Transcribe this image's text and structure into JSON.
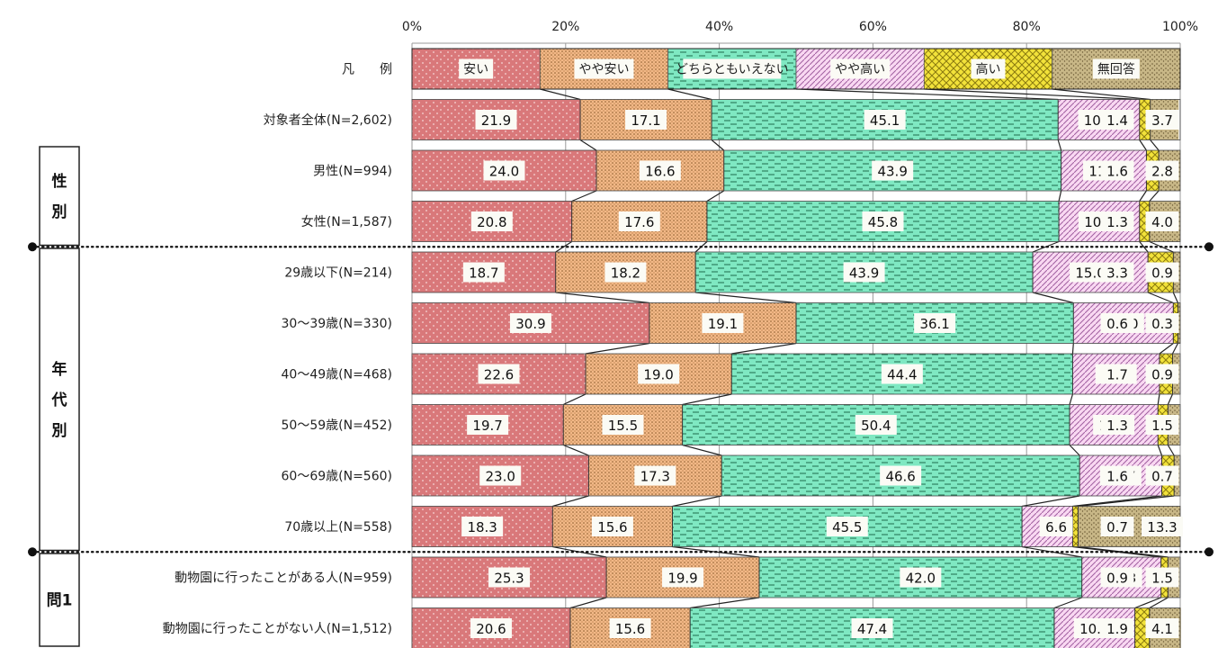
{
  "chart_data": {
    "type": "bar",
    "orientation": "horizontal",
    "stacked": true,
    "xlim": [
      0,
      100
    ],
    "x_ticks": [
      "0%",
      "20%",
      "40%",
      "60%",
      "80%",
      "100%"
    ],
    "legend_row_label": "凡　　例",
    "series": [
      {
        "name": "安い",
        "color": "#d9787a",
        "pattern": "dots"
      },
      {
        "name": "やや安い",
        "color": "#f2b887",
        "pattern": "dense-dots"
      },
      {
        "name": "どちらともいえない",
        "color": "#7fe8c2",
        "pattern": "dashes"
      },
      {
        "name": "やや高い",
        "color": "#f9d8f2",
        "pattern": "hatch"
      },
      {
        "name": "高い",
        "color": "#f2e23a",
        "pattern": "cross"
      },
      {
        "name": "無回答",
        "color": "#c8b787",
        "pattern": "speckle"
      }
    ],
    "categories": [
      "対象者全体(N=2,602)",
      "男性(N=994)",
      "女性(N=1,587)",
      "29歳以下(N=214)",
      "30～39歳(N=330)",
      "40～49歳(N=468)",
      "50～59歳(N=452)",
      "60～69歳(N=560)",
      "70歳以上(N=558)",
      "動物園に行ったことがある人(N=959)",
      "動物園に行ったことがない人(N=1,512)"
    ],
    "values": [
      [
        21.9,
        17.1,
        45.1,
        10.6,
        1.4,
        3.7
      ],
      [
        24.0,
        16.6,
        43.9,
        11.1,
        1.6,
        2.8
      ],
      [
        20.8,
        17.6,
        45.8,
        10.5,
        1.3,
        4.0
      ],
      [
        18.7,
        18.2,
        43.9,
        15.0,
        3.3,
        0.9
      ],
      [
        30.9,
        19.1,
        36.1,
        13.0,
        0.6,
        0.3
      ],
      [
        22.6,
        19.0,
        44.4,
        11.3,
        1.7,
        0.9
      ],
      [
        19.7,
        15.5,
        50.4,
        11.5,
        1.3,
        1.5
      ],
      [
        23.0,
        17.3,
        46.6,
        10.7,
        1.6,
        0.7
      ],
      [
        18.3,
        15.6,
        45.5,
        6.6,
        0.7,
        13.3
      ],
      [
        25.3,
        19.9,
        42.0,
        10.3,
        0.9,
        1.5
      ],
      [
        20.6,
        15.6,
        47.4,
        10.5,
        1.9,
        4.1
      ]
    ],
    "value_labels": [
      [
        "21.9",
        "17.1",
        "45.1",
        "10.6",
        "1.4",
        "3.7"
      ],
      [
        "24.0",
        "16.6",
        "43.9",
        "11.1",
        "1.6",
        "2.8"
      ],
      [
        "20.8",
        "17.6",
        "45.8",
        "10.5",
        "1.3",
        "4.0"
      ],
      [
        "18.7",
        "18.2",
        "43.9",
        "15.0",
        "3.3",
        "0.9"
      ],
      [
        "30.9",
        "19.1",
        "36.1",
        "13.0",
        "0.6",
        "0.3"
      ],
      [
        "22.6",
        "19.0",
        "44.4",
        "11.3",
        "1.7",
        "0.9"
      ],
      [
        "19.7",
        "15.5",
        "50.4",
        "11.5",
        "1.3",
        "1.5"
      ],
      [
        "23.0",
        "17.3",
        "46.6",
        "10.7",
        "1.6",
        "0.7"
      ],
      [
        "18.3",
        "15.6",
        "45.5",
        "6.6",
        "0.7",
        "13.3"
      ],
      [
        "25.3",
        "19.9",
        "42.0",
        "10.3",
        "0.9",
        "1.5"
      ],
      [
        "20.6",
        "15.6",
        "47.4",
        "10.5",
        "1.9",
        "4.1"
      ]
    ],
    "groups": [
      {
        "label": "性別",
        "rows": [
          1,
          2
        ]
      },
      {
        "label": "年代別",
        "rows": [
          3,
          8
        ]
      },
      {
        "label": "問1",
        "rows": [
          9,
          10
        ]
      }
    ]
  }
}
